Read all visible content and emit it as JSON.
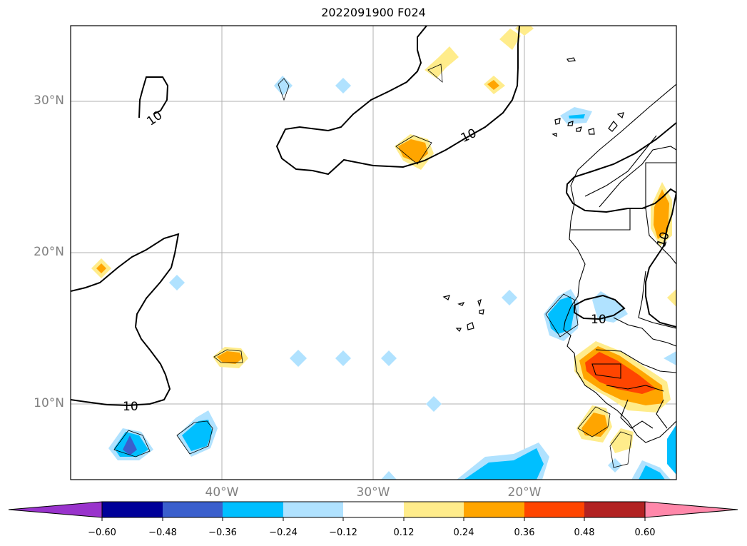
{
  "title": "2022091900 F024",
  "map": {
    "lat_labels": [
      "30°N",
      "20°N",
      "10°N"
    ],
    "lon_labels": [
      "40°W",
      "30°W",
      "20°W"
    ],
    "contour_label": "10",
    "extent": {
      "lon": [
        -50,
        -10
      ],
      "lat": [
        5,
        35
      ]
    },
    "grid": true
  },
  "colorbar": {
    "ticks": [
      "−0.60",
      "−0.48",
      "−0.36",
      "−0.24",
      "−0.12",
      "0.12",
      "0.24",
      "0.36",
      "0.48",
      "0.60"
    ],
    "colors": {
      "under": "#9933cc",
      "lt_060": "#000099",
      "lt_048": "#3a5fcd",
      "lt_036": "#00bfff",
      "lt_024": "#b0e2ff",
      "neutral": "#ffffff",
      "gt_012": "#ffec8b",
      "gt_024": "#ffa500",
      "gt_036": "#ff4500",
      "gt_048": "#b22222",
      "over": "#ff88aa"
    }
  }
}
